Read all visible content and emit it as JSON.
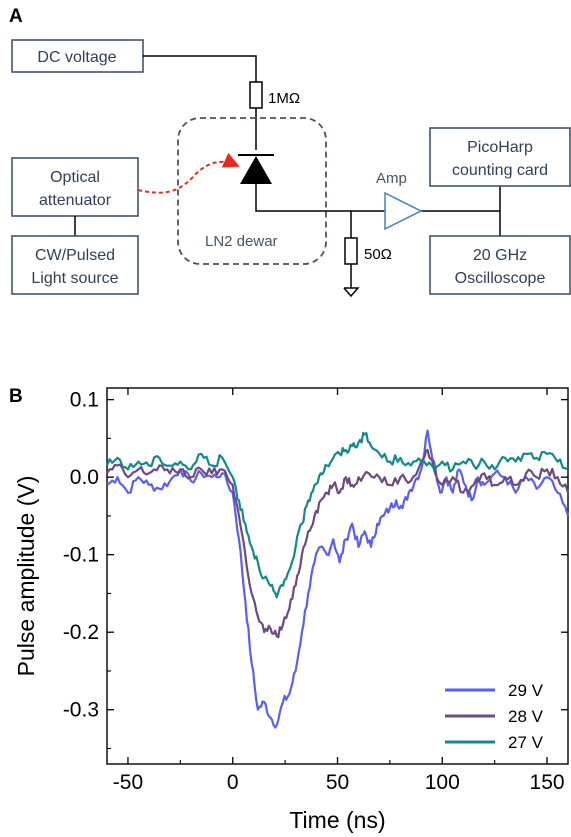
{
  "panels": {
    "a_label": "A",
    "b_label": "B"
  },
  "circuit": {
    "dc_voltage": "DC voltage",
    "resistor_top": "1MΩ",
    "optical_attenuator_line1": "Optical",
    "optical_attenuator_line2": "attenuator",
    "light_source_line1": "CW/Pulsed",
    "light_source_line2": "Light source",
    "dewar": "LN2 dewar",
    "amp": "Amp",
    "resistor_bottom": "50Ω",
    "picoharp_line1": "PicoHarp",
    "picoharp_line2": "counting card",
    "oscilloscope_line1": "20 GHz",
    "oscilloscope_line2": "Oscilloscope",
    "colors": {
      "box_stroke": "#44546a",
      "box_text": "#2f4058",
      "laser_path": "#e8291c",
      "amp": "#4a89c8"
    }
  },
  "chart_data": {
    "type": "line",
    "xlabel": "Time (ns)",
    "ylabel": "Pulse amplitude (V)",
    "xlim": [
      -60,
      160
    ],
    "ylim": [
      -0.37,
      0.115
    ],
    "xticks": [
      -50,
      0,
      50,
      100,
      150
    ],
    "yticks": [
      0.1,
      0.0,
      -0.1,
      -0.2,
      -0.3
    ],
    "xtick_labels": [
      "-50",
      "0",
      "50",
      "100",
      "150"
    ],
    "ytick_labels": [
      "0.1",
      "0.0",
      "-0.1",
      "-0.2",
      "-0.3"
    ],
    "legend_position": "bottom-right",
    "series": [
      {
        "name": "29 V",
        "color": "#5b5ff0",
        "points": [
          [
            -60,
            -0.01
          ],
          [
            -55,
            0.0
          ],
          [
            -50,
            -0.02
          ],
          [
            -45,
            0.0
          ],
          [
            -40,
            -0.01
          ],
          [
            -35,
            -0.015
          ],
          [
            -30,
            -0.005
          ],
          [
            -25,
            0.01
          ],
          [
            -20,
            -0.005
          ],
          [
            -15,
            0.005
          ],
          [
            -10,
            0.0
          ],
          [
            -5,
            0.005
          ],
          [
            0,
            -0.02
          ],
          [
            3,
            -0.08
          ],
          [
            6,
            -0.16
          ],
          [
            9,
            -0.24
          ],
          [
            12,
            -0.3
          ],
          [
            15,
            -0.29
          ],
          [
            18,
            -0.31
          ],
          [
            21,
            -0.32
          ],
          [
            24,
            -0.29
          ],
          [
            27,
            -0.28
          ],
          [
            30,
            -0.25
          ],
          [
            33,
            -0.2
          ],
          [
            36,
            -0.15
          ],
          [
            39,
            -0.11
          ],
          [
            42,
            -0.09
          ],
          [
            45,
            -0.1
          ],
          [
            48,
            -0.08
          ],
          [
            51,
            -0.11
          ],
          [
            54,
            -0.08
          ],
          [
            57,
            -0.06
          ],
          [
            60,
            -0.09
          ],
          [
            63,
            -0.07
          ],
          [
            66,
            -0.09
          ],
          [
            69,
            -0.06
          ],
          [
            72,
            -0.05
          ],
          [
            75,
            -0.04
          ],
          [
            78,
            -0.03
          ],
          [
            81,
            -0.04
          ],
          [
            84,
            -0.02
          ],
          [
            87,
            -0.005
          ],
          [
            90,
            0.01
          ],
          [
            93,
            0.06
          ],
          [
            96,
            0.02
          ],
          [
            99,
            -0.02
          ],
          [
            102,
            0.0
          ],
          [
            105,
            -0.02
          ],
          [
            108,
            0.01
          ],
          [
            111,
            -0.01
          ],
          [
            114,
            -0.03
          ],
          [
            117,
            0.0
          ],
          [
            120,
            -0.01
          ],
          [
            125,
            0.005
          ],
          [
            130,
            0.0
          ],
          [
            135,
            -0.02
          ],
          [
            140,
            0.0
          ],
          [
            145,
            -0.015
          ],
          [
            150,
            0.0
          ],
          [
            155,
            -0.02
          ],
          [
            160,
            -0.05
          ]
        ]
      },
      {
        "name": "28 V",
        "color": "#6e4a82",
        "points": [
          [
            -60,
            0.005
          ],
          [
            -55,
            0.015
          ],
          [
            -50,
            0.0
          ],
          [
            -45,
            0.01
          ],
          [
            -40,
            0.005
          ],
          [
            -35,
            0.015
          ],
          [
            -30,
            0.005
          ],
          [
            -25,
            0.01
          ],
          [
            -20,
            0.0
          ],
          [
            -15,
            0.01
          ],
          [
            -10,
            0.005
          ],
          [
            -5,
            0.01
          ],
          [
            0,
            -0.01
          ],
          [
            3,
            -0.05
          ],
          [
            6,
            -0.1
          ],
          [
            9,
            -0.15
          ],
          [
            12,
            -0.18
          ],
          [
            15,
            -0.2
          ],
          [
            18,
            -0.195
          ],
          [
            21,
            -0.205
          ],
          [
            24,
            -0.19
          ],
          [
            27,
            -0.17
          ],
          [
            30,
            -0.14
          ],
          [
            33,
            -0.1
          ],
          [
            36,
            -0.07
          ],
          [
            39,
            -0.05
          ],
          [
            42,
            -0.03
          ],
          [
            45,
            -0.02
          ],
          [
            48,
            -0.01
          ],
          [
            51,
            -0.02
          ],
          [
            54,
            0.0
          ],
          [
            57,
            -0.01
          ],
          [
            60,
            0.0
          ],
          [
            65,
            0.005
          ],
          [
            70,
            0.0
          ],
          [
            75,
            -0.01
          ],
          [
            80,
            0.0
          ],
          [
            85,
            -0.005
          ],
          [
            90,
            0.02
          ],
          [
            93,
            0.035
          ],
          [
            96,
            0.01
          ],
          [
            100,
            -0.01
          ],
          [
            105,
            0.0
          ],
          [
            110,
            -0.02
          ],
          [
            115,
            -0.01
          ],
          [
            120,
            0.005
          ],
          [
            125,
            -0.01
          ],
          [
            130,
            0.0
          ],
          [
            135,
            -0.01
          ],
          [
            140,
            0.005
          ],
          [
            145,
            0.0
          ],
          [
            150,
            0.01
          ],
          [
            155,
            0.0
          ],
          [
            160,
            -0.02
          ]
        ]
      },
      {
        "name": "27 V",
        "color": "#138a87",
        "points": [
          [
            -60,
            0.015
          ],
          [
            -55,
            0.025
          ],
          [
            -50,
            0.01
          ],
          [
            -45,
            0.02
          ],
          [
            -40,
            0.015
          ],
          [
            -35,
            0.025
          ],
          [
            -30,
            0.015
          ],
          [
            -25,
            0.02
          ],
          [
            -20,
            0.01
          ],
          [
            -15,
            0.03
          ],
          [
            -10,
            0.015
          ],
          [
            -5,
            0.025
          ],
          [
            0,
            0.0
          ],
          [
            3,
            -0.03
          ],
          [
            6,
            -0.06
          ],
          [
            9,
            -0.09
          ],
          [
            12,
            -0.11
          ],
          [
            15,
            -0.13
          ],
          [
            18,
            -0.14
          ],
          [
            21,
            -0.155
          ],
          [
            24,
            -0.14
          ],
          [
            27,
            -0.12
          ],
          [
            30,
            -0.09
          ],
          [
            33,
            -0.06
          ],
          [
            36,
            -0.03
          ],
          [
            39,
            -0.01
          ],
          [
            42,
            0.005
          ],
          [
            45,
            0.015
          ],
          [
            48,
            0.025
          ],
          [
            51,
            0.03
          ],
          [
            54,
            0.035
          ],
          [
            57,
            0.04
          ],
          [
            60,
            0.045
          ],
          [
            63,
            0.055
          ],
          [
            66,
            0.04
          ],
          [
            70,
            0.03
          ],
          [
            75,
            0.02
          ],
          [
            80,
            0.025
          ],
          [
            85,
            0.015
          ],
          [
            90,
            0.02
          ],
          [
            95,
            0.015
          ],
          [
            100,
            0.02
          ],
          [
            105,
            0.01
          ],
          [
            110,
            0.02
          ],
          [
            115,
            0.015
          ],
          [
            120,
            0.02
          ],
          [
            125,
            0.01
          ],
          [
            130,
            0.025
          ],
          [
            135,
            0.02
          ],
          [
            140,
            0.03
          ],
          [
            145,
            0.025
          ],
          [
            150,
            0.03
          ],
          [
            155,
            0.02
          ],
          [
            160,
            0.01
          ]
        ]
      }
    ]
  }
}
